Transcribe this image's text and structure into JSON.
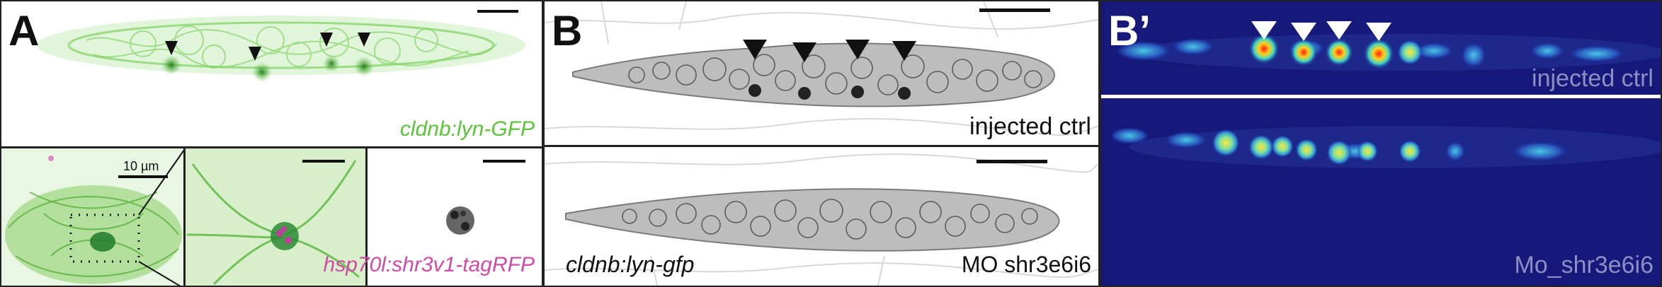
{
  "figure": {
    "panel_a": {
      "label": "A",
      "top_caption": "cldnb:lyn-GFP",
      "scale_label": "10 µm",
      "bottom_caption": "hsp70l:shr3v1-tagRFP"
    },
    "panel_b": {
      "label": "B",
      "top_caption": "injected ctrl",
      "bottom_left_caption": "cldnb:lyn-gfp",
      "bottom_right_caption": "MO shr3e6i6"
    },
    "panel_b_prime": {
      "label": "B’",
      "top_caption": "injected ctrl",
      "bottom_caption": "Mo_shr3e6i6"
    }
  },
  "colors": {
    "gfp_green": "#5cc43a",
    "tag_magenta": "#d04aa8",
    "heatmap_bg": "#16197a",
    "divider": "#ffffff"
  }
}
